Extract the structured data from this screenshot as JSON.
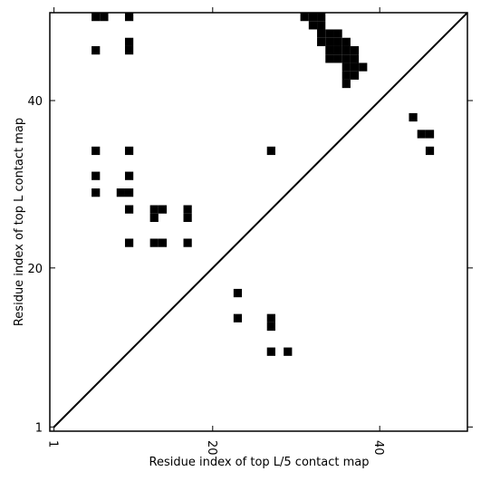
{
  "chart_data": {
    "type": "scatter",
    "marker": "square",
    "xlabel": "Residue index of top L/5 contact map",
    "ylabel": "Residue index of top L contact map",
    "xlim": [
      0.5,
      50.5
    ],
    "ylim": [
      0.5,
      50.5
    ],
    "xticks": [
      1,
      20,
      40
    ],
    "yticks": [
      1,
      20,
      40
    ],
    "diagonal": {
      "x": [
        1,
        50.5
      ],
      "y": [
        1,
        50.5
      ],
      "color": "#000000"
    },
    "series": [
      {
        "color": "#000000",
        "x": [
          6,
          7,
          10,
          6,
          10,
          10,
          6,
          10,
          27,
          6,
          10,
          6,
          9,
          10,
          10,
          13,
          14,
          17,
          13,
          17,
          10,
          13,
          14,
          17,
          23,
          23,
          27,
          27,
          27,
          29,
          44,
          45,
          46,
          46,
          31,
          32,
          33,
          32,
          33,
          33,
          34,
          35,
          33,
          34,
          35,
          36,
          34,
          35,
          36,
          37,
          34,
          35,
          36,
          37,
          36,
          37,
          38,
          36,
          37,
          36
        ],
        "y": [
          50,
          50,
          50,
          46,
          46,
          47,
          34,
          34,
          34,
          31,
          31,
          29,
          29,
          29,
          27,
          27,
          27,
          27,
          26,
          26,
          23,
          23,
          23,
          23,
          17,
          14,
          14,
          13,
          10,
          10,
          38,
          36,
          36,
          34,
          50,
          50,
          50,
          49,
          49,
          48,
          48,
          48,
          47,
          47,
          47,
          47,
          46,
          46,
          46,
          46,
          45,
          45,
          45,
          45,
          44,
          44,
          44,
          43,
          43,
          42
        ]
      }
    ]
  }
}
